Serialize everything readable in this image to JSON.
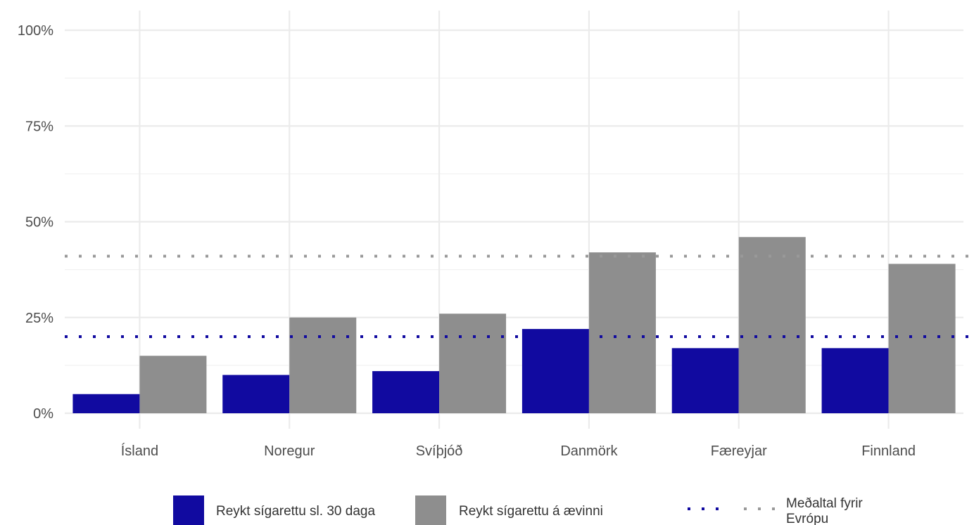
{
  "chart_data": {
    "type": "bar",
    "title": "",
    "xlabel": "",
    "ylabel": "",
    "categories": [
      "Ísland",
      "Noregur",
      "Svíþjóð",
      "Danmörk",
      "Færeyjar",
      "Finnland"
    ],
    "series": [
      {
        "name": "Reykt sígarettu sl. 30 daga",
        "values": [
          5,
          10,
          11,
          22,
          17,
          17
        ],
        "color": "#110aa0"
      },
      {
        "name": "Reykt sígarettu á ævinni",
        "values": [
          15,
          25,
          26,
          42,
          46,
          39
        ],
        "color": "#8e8e8e"
      }
    ],
    "reference_lines": [
      {
        "series": "Reykt sígarettu sl. 30 daga",
        "value": 20,
        "color": "#110aa0",
        "style": "dotted"
      },
      {
        "series": "Reykt sígarettu á ævinni",
        "value": 41,
        "color": "#999999",
        "style": "dotted"
      }
    ],
    "reference_legend_label": "Meðaltal fyrir Evrópu",
    "ylim": [
      0,
      100
    ],
    "yticks": [
      0,
      25,
      50,
      75,
      100
    ],
    "ytick_labels": [
      "0%",
      "25%",
      "50%",
      "75%",
      "100%"
    ],
    "grid": true,
    "legend_position": "bottom"
  }
}
